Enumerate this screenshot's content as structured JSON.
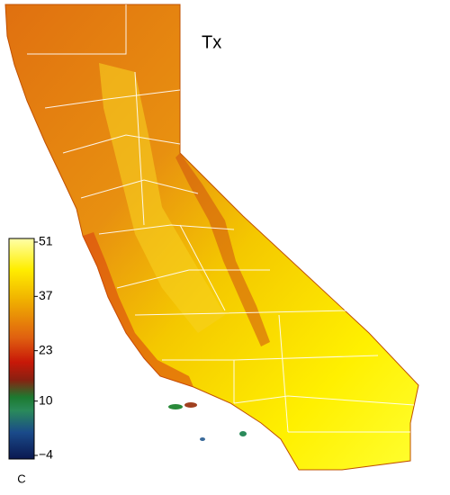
{
  "map": {
    "title": "Tx",
    "colorbar": {
      "unit": "C",
      "ticks": [
        {
          "value": 51,
          "label": "51"
        },
        {
          "value": 37,
          "label": "37"
        },
        {
          "value": 23,
          "label": "23"
        },
        {
          "value": 10,
          "label": "10"
        },
        {
          "value": -4,
          "label": "−4"
        }
      ]
    }
  }
}
